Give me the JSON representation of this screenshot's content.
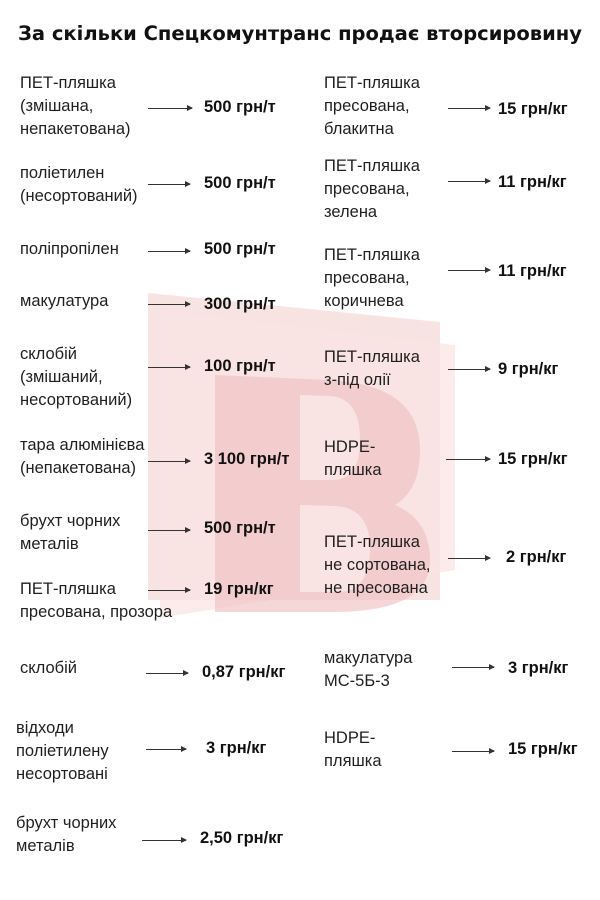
{
  "title": "За скільки Спецкомунтранс продає вторсировину",
  "watermark": {
    "icon": "watermark-logo-b",
    "color": "#e8b4b4"
  },
  "left_items": [
    {
      "lines": [
        "ПЕТ-пляшка",
        "(змішана,",
        "непакетована)"
      ],
      "value": "500 грн/т"
    },
    {
      "lines": [
        "поліетилен",
        "(несортований)"
      ],
      "value": "500 грн/т"
    },
    {
      "lines": [
        "поліпропілен"
      ],
      "value": "500 грн/т"
    },
    {
      "lines": [
        "макулатура"
      ],
      "value": "300 грн/т"
    },
    {
      "lines": [
        "склобій",
        "(змішаний,",
        "несортований)"
      ],
      "value": "100 грн/т"
    },
    {
      "lines": [
        "тара алюмінієва",
        "(непакетована)"
      ],
      "value": "3 100 грн/т"
    },
    {
      "lines": [
        "брухт чорних",
        "металів"
      ],
      "value": "500 грн/т"
    },
    {
      "lines": [
        "ПЕТ-пляшка",
        "пресована, прозора"
      ],
      "value": "19 грн/кг"
    },
    {
      "lines": [
        "склобій"
      ],
      "value": "0,87 грн/кг"
    },
    {
      "lines": [
        "відходи",
        "поліетилену",
        "несортовані"
      ],
      "value": "3 грн/кг"
    },
    {
      "lines": [
        "брухт чорних",
        "металів"
      ],
      "value": "2,50 грн/кг"
    }
  ],
  "right_items": [
    {
      "lines": [
        "ПЕТ-пляшка",
        "пресована,",
        "блакитна"
      ],
      "value": "15 грн/кг"
    },
    {
      "lines": [
        "ПЕТ-пляшка",
        "пресована,",
        "зелена"
      ],
      "value": "11 грн/кг"
    },
    {
      "lines": [
        "ПЕТ-пляшка",
        "пресована,",
        "коричнева"
      ],
      "value": "11 грн/кг"
    },
    {
      "lines": [
        "ПЕТ-пляшка",
        "з-під олії"
      ],
      "value": "9 грн/кг"
    },
    {
      "lines": [
        "HDPE-",
        "пляшка"
      ],
      "value": "15 грн/кг"
    },
    {
      "lines": [
        "ПЕТ-пляшка",
        "не сортована,",
        "не пресована"
      ],
      "value": "2 грн/кг"
    },
    {
      "lines": [
        "макулатура",
        "МС-5Б-3"
      ],
      "value": "3 грн/кг"
    },
    {
      "lines": [
        "HDPE-",
        "пляшка"
      ],
      "value": "15 грн/кг"
    }
  ]
}
